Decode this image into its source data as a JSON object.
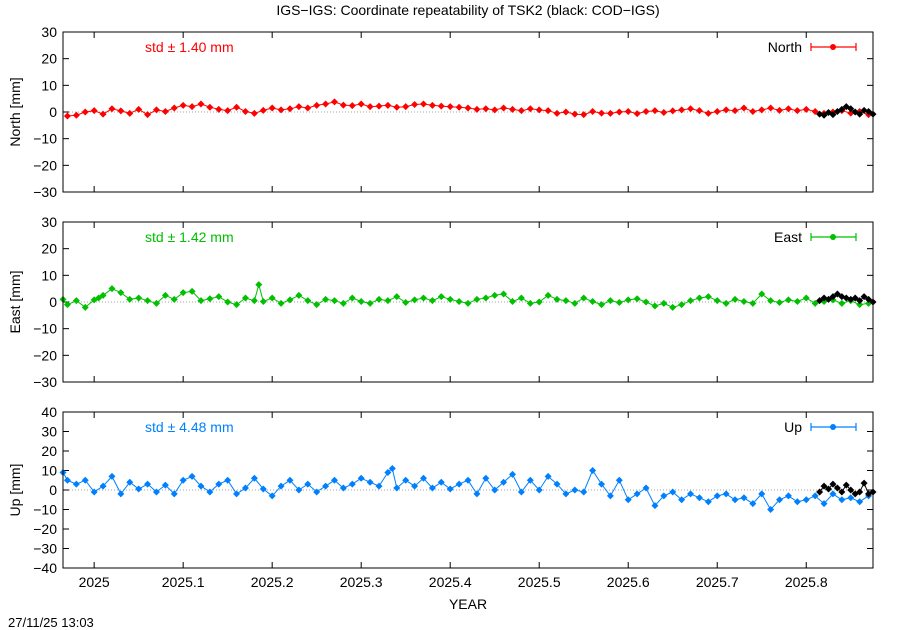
{
  "title": "IGS−IGS: Coordinate repeatability of TSK2 (black: COD−IGS)",
  "xlabel": "YEAR",
  "timestamp": "27/11/25 13:03",
  "chart_data": [
    {
      "type": "scatter",
      "component": "North",
      "ylabel": "North [mm]",
      "ylim": [
        -30,
        30
      ],
      "yticks": [
        -30,
        -20,
        -10,
        0,
        10,
        20,
        30
      ],
      "std_label": "std ± 1.40 mm",
      "color": "#ff0000",
      "legend": "North",
      "series": [
        {
          "name": "North",
          "x": [
            2024.97,
            2024.98,
            2024.99,
            2025.0,
            2025.01,
            2025.02,
            2025.03,
            2025.04,
            2025.05,
            2025.06,
            2025.07,
            2025.08,
            2025.09,
            2025.1,
            2025.11,
            2025.12,
            2025.13,
            2025.14,
            2025.15,
            2025.16,
            2025.17,
            2025.18,
            2025.19,
            2025.2,
            2025.21,
            2025.22,
            2025.23,
            2025.24,
            2025.25,
            2025.26,
            2025.27,
            2025.28,
            2025.29,
            2025.3,
            2025.31,
            2025.32,
            2025.33,
            2025.34,
            2025.35,
            2025.36,
            2025.37,
            2025.38,
            2025.39,
            2025.4,
            2025.41,
            2025.42,
            2025.43,
            2025.44,
            2025.45,
            2025.46,
            2025.47,
            2025.48,
            2025.49,
            2025.5,
            2025.51,
            2025.52,
            2025.53,
            2025.54,
            2025.55,
            2025.56,
            2025.57,
            2025.58,
            2025.59,
            2025.6,
            2025.61,
            2025.62,
            2025.63,
            2025.64,
            2025.65,
            2025.66,
            2025.67,
            2025.68,
            2025.69,
            2025.7,
            2025.71,
            2025.72,
            2025.73,
            2025.74,
            2025.75,
            2025.76,
            2025.77,
            2025.78,
            2025.79,
            2025.8,
            2025.81,
            2025.82,
            2025.83,
            2025.84,
            2025.85,
            2025.86,
            2025.87
          ],
          "y": [
            -1.5,
            -1.2,
            0.0,
            0.5,
            -0.8,
            1.2,
            0.4,
            -0.5,
            1.0,
            -1.0,
            0.8,
            0.2,
            1.5,
            2.5,
            2.0,
            3.0,
            1.8,
            1.0,
            0.5,
            1.8,
            0.2,
            -0.5,
            0.6,
            1.5,
            0.8,
            1.2,
            2.0,
            1.5,
            2.5,
            3.0,
            3.8,
            2.6,
            2.4,
            3.0,
            2.0,
            2.2,
            2.5,
            1.8,
            2.0,
            2.8,
            3.0,
            2.5,
            2.2,
            2.0,
            1.8,
            1.5,
            1.0,
            1.2,
            0.8,
            1.5,
            1.0,
            0.5,
            1.2,
            0.8,
            0.5,
            -0.5,
            0.0,
            -0.8,
            -1.0,
            0.2,
            -0.4,
            -0.5,
            0.0,
            0.2,
            -0.6,
            0.2,
            0.5,
            -0.2,
            0.4,
            0.8,
            1.2,
            0.5,
            -0.5,
            0.2,
            0.8,
            0.5,
            1.5,
            0.2,
            0.8,
            1.5,
            0.6,
            1.2,
            0.5,
            1.0,
            0.2,
            -0.5,
            0.0,
            0.5,
            -0.4,
            0.2,
            -1.0
          ]
        },
        {
          "name": "COD−IGS",
          "x": [
            2025.815,
            2025.82,
            2025.825,
            2025.83,
            2025.835,
            2025.84,
            2025.845,
            2025.85,
            2025.855,
            2025.86,
            2025.865,
            2025.87,
            2025.875
          ],
          "y": [
            -0.8,
            -1.2,
            -0.2,
            -1.0,
            0.2,
            1.0,
            2.0,
            1.2,
            0.0,
            -0.8,
            0.6,
            0.2,
            -0.8
          ]
        }
      ]
    },
    {
      "type": "scatter",
      "component": "East",
      "ylabel": "East [mm]",
      "ylim": [
        -30,
        30
      ],
      "yticks": [
        -30,
        -20,
        -10,
        0,
        10,
        20,
        30
      ],
      "std_label": "std ± 1.42 mm",
      "color": "#00c000",
      "legend": "East",
      "series": [
        {
          "name": "East",
          "x": [
            2024.965,
            2024.97,
            2024.98,
            2024.99,
            2025.0,
            2025.005,
            2025.01,
            2025.02,
            2025.03,
            2025.04,
            2025.05,
            2025.06,
            2025.07,
            2025.08,
            2025.09,
            2025.1,
            2025.11,
            2025.12,
            2025.13,
            2025.14,
            2025.15,
            2025.16,
            2025.17,
            2025.18,
            2025.185,
            2025.19,
            2025.2,
            2025.21,
            2025.22,
            2025.23,
            2025.24,
            2025.25,
            2025.26,
            2025.27,
            2025.28,
            2025.29,
            2025.3,
            2025.31,
            2025.32,
            2025.33,
            2025.34,
            2025.35,
            2025.36,
            2025.37,
            2025.38,
            2025.39,
            2025.4,
            2025.41,
            2025.42,
            2025.43,
            2025.44,
            2025.45,
            2025.46,
            2025.47,
            2025.48,
            2025.49,
            2025.5,
            2025.51,
            2025.52,
            2025.53,
            2025.54,
            2025.55,
            2025.56,
            2025.57,
            2025.58,
            2025.59,
            2025.6,
            2025.61,
            2025.62,
            2025.63,
            2025.64,
            2025.65,
            2025.66,
            2025.67,
            2025.68,
            2025.69,
            2025.7,
            2025.71,
            2025.72,
            2025.73,
            2025.74,
            2025.75,
            2025.76,
            2025.77,
            2025.78,
            2025.79,
            2025.8,
            2025.81,
            2025.82,
            2025.83,
            2025.84,
            2025.85,
            2025.86,
            2025.87
          ],
          "y": [
            1.0,
            -1.0,
            0.5,
            -2.0,
            0.8,
            1.5,
            2.5,
            5.0,
            3.5,
            1.0,
            1.5,
            0.5,
            -0.5,
            2.5,
            1.0,
            3.5,
            4.0,
            0.5,
            1.2,
            2.0,
            0.0,
            -1.0,
            1.5,
            0.5,
            6.5,
            0.2,
            1.5,
            -0.5,
            0.8,
            2.5,
            0.5,
            -1.0,
            1.0,
            0.5,
            -0.5,
            1.5,
            0.2,
            -0.5,
            1.0,
            0.5,
            2.0,
            -0.2,
            0.8,
            1.5,
            0.5,
            2.0,
            1.0,
            0.2,
            -0.5,
            1.0,
            1.5,
            2.5,
            3.0,
            0.2,
            1.5,
            -0.5,
            0.0,
            2.5,
            1.0,
            0.5,
            -0.5,
            1.5,
            0.2,
            -1.0,
            0.5,
            -0.2,
            0.8,
            1.2,
            0.0,
            -1.5,
            -0.5,
            -2.0,
            -1.0,
            0.5,
            1.5,
            2.0,
            0.5,
            -0.5,
            1.0,
            0.2,
            -0.5,
            3.0,
            0.5,
            -0.2,
            0.8,
            0.2,
            1.5,
            -0.5,
            0.2,
            0.8,
            -0.5,
            0.5,
            -1.0,
            -0.5
          ]
        },
        {
          "name": "COD−IGS",
          "x": [
            2025.815,
            2025.82,
            2025.825,
            2025.83,
            2025.835,
            2025.84,
            2025.845,
            2025.85,
            2025.855,
            2025.86,
            2025.865,
            2025.87,
            2025.875
          ],
          "y": [
            0.5,
            1.5,
            1.0,
            2.0,
            3.0,
            2.0,
            1.5,
            1.0,
            1.5,
            0.5,
            2.0,
            1.0,
            0.0
          ]
        }
      ]
    },
    {
      "type": "scatter",
      "component": "Up",
      "ylabel": "Up [mm]",
      "ylim": [
        -40,
        40
      ],
      "yticks": [
        -40,
        -30,
        -20,
        -10,
        0,
        10,
        20,
        30,
        40
      ],
      "std_label": "std ± 4.48 mm",
      "color": "#0080ff",
      "legend": "Up",
      "series": [
        {
          "name": "Up",
          "x": [
            2024.965,
            2024.97,
            2024.98,
            2024.99,
            2025.0,
            2025.01,
            2025.02,
            2025.03,
            2025.04,
            2025.05,
            2025.06,
            2025.07,
            2025.08,
            2025.09,
            2025.1,
            2025.11,
            2025.12,
            2025.13,
            2025.14,
            2025.15,
            2025.16,
            2025.17,
            2025.18,
            2025.19,
            2025.2,
            2025.21,
            2025.22,
            2025.23,
            2025.24,
            2025.25,
            2025.26,
            2025.27,
            2025.28,
            2025.29,
            2025.3,
            2025.31,
            2025.32,
            2025.33,
            2025.335,
            2025.34,
            2025.35,
            2025.36,
            2025.37,
            2025.38,
            2025.39,
            2025.4,
            2025.41,
            2025.42,
            2025.43,
            2025.44,
            2025.45,
            2025.46,
            2025.47,
            2025.48,
            2025.49,
            2025.5,
            2025.51,
            2025.52,
            2025.53,
            2025.54,
            2025.55,
            2025.56,
            2025.57,
            2025.58,
            2025.59,
            2025.6,
            2025.61,
            2025.62,
            2025.63,
            2025.64,
            2025.65,
            2025.66,
            2025.67,
            2025.68,
            2025.69,
            2025.7,
            2025.71,
            2025.72,
            2025.73,
            2025.74,
            2025.75,
            2025.76,
            2025.77,
            2025.78,
            2025.79,
            2025.8,
            2025.81,
            2025.82,
            2025.83,
            2025.84,
            2025.85,
            2025.86,
            2025.87
          ],
          "y": [
            9.0,
            5.0,
            3.0,
            5.0,
            -1.0,
            2.0,
            7.0,
            -2.0,
            4.0,
            0.5,
            3.0,
            -1.0,
            2.5,
            -2.0,
            5.0,
            7.0,
            2.0,
            -1.0,
            3.0,
            5.0,
            -2.0,
            1.0,
            6.0,
            0.5,
            -3.0,
            2.0,
            5.0,
            0.0,
            3.0,
            -1.0,
            2.0,
            5.0,
            1.0,
            3.0,
            6.0,
            4.0,
            2.0,
            9.0,
            11.0,
            1.0,
            5.0,
            2.0,
            6.0,
            1.0,
            4.0,
            0.5,
            3.0,
            5.0,
            -2.0,
            6.0,
            0.0,
            4.0,
            8.0,
            -1.0,
            5.0,
            0.0,
            7.0,
            3.0,
            -2.0,
            0.0,
            -1.0,
            10.0,
            3.0,
            -3.0,
            5.0,
            -5.0,
            -2.0,
            1.0,
            -8.0,
            -3.0,
            -1.0,
            -5.0,
            -2.0,
            -4.0,
            -6.0,
            -3.0,
            -2.0,
            -5.0,
            -4.0,
            -7.0,
            -2.0,
            -10.0,
            -5.0,
            -3.0,
            -6.0,
            -5.0,
            -3.0,
            -7.0,
            -2.0,
            -5.0,
            -4.0,
            -6.0,
            -3.0
          ]
        },
        {
          "name": "COD−IGS",
          "x": [
            2025.815,
            2025.82,
            2025.825,
            2025.83,
            2025.835,
            2025.84,
            2025.845,
            2025.85,
            2025.855,
            2025.86,
            2025.865,
            2025.87,
            2025.875
          ],
          "y": [
            -1.0,
            2.0,
            0.5,
            3.0,
            1.0,
            -1.0,
            2.5,
            0.0,
            -2.0,
            -1.0,
            3.5,
            -2.0,
            -1.0
          ]
        }
      ]
    }
  ],
  "xaxis": {
    "xlim": [
      2024.965,
      2025.875
    ],
    "ticks": [
      2025,
      2025.1,
      2025.2,
      2025.3,
      2025.4,
      2025.5,
      2025.6,
      2025.7,
      2025.8
    ],
    "tick_labels": [
      "2025",
      "2025.1",
      "2025.2",
      "2025.3",
      "2025.4",
      "2025.5",
      "2025.6",
      "2025.7",
      "2025.8"
    ]
  },
  "overlay_color": "#000000"
}
